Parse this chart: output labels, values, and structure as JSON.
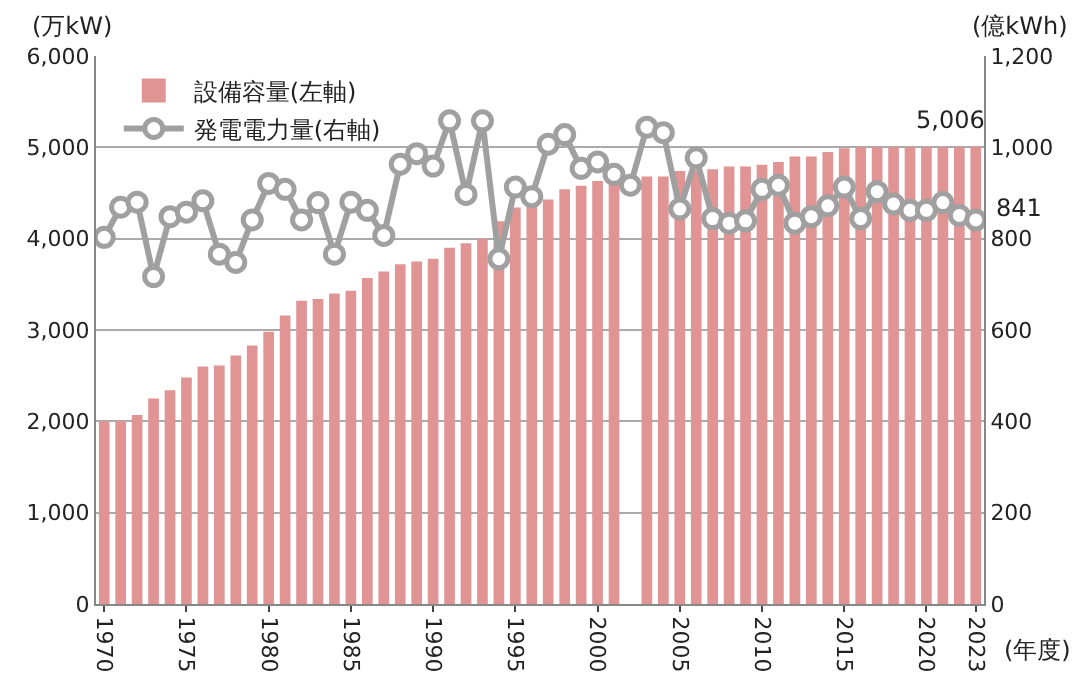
{
  "chart_data": {
    "type": "bar",
    "categories": [
      "1970",
      null,
      null,
      null,
      null,
      "1975",
      null,
      null,
      null,
      null,
      "1980",
      null,
      null,
      null,
      null,
      "1985",
      null,
      null,
      null,
      null,
      "1990",
      null,
      null,
      null,
      null,
      "1995",
      null,
      null,
      null,
      null,
      "2000",
      null,
      null,
      null,
      null,
      "2005",
      null,
      null,
      null,
      null,
      "2010",
      null,
      null,
      null,
      null,
      "2015",
      null,
      null,
      null,
      null,
      "2020",
      null,
      null,
      "2023"
    ],
    "series": [
      {
        "name": "設備容量(左軸)",
        "color": "#e09494",
        "values": [
          2000,
          2010,
          2070,
          2250,
          2340,
          2480,
          2600,
          2610,
          2720,
          2830,
          2980,
          3160,
          3320,
          3340,
          3400,
          3430,
          3570,
          3640,
          3720,
          3750,
          3780,
          3900,
          3950,
          4000,
          4190,
          4340,
          4380,
          4430,
          4540,
          4580,
          4630,
          4620,
          null,
          4680,
          4680,
          4740,
          4750,
          4760,
          4790,
          4790,
          4810,
          4840,
          4900,
          4900,
          4950,
          4990,
          5000,
          5000,
          5000,
          5000,
          5000,
          5000,
          5000,
          5006
        ],
        "value_labels": [
          null,
          null,
          null,
          null,
          null,
          null,
          null,
          null,
          null,
          null,
          null,
          null,
          null,
          null,
          null,
          null,
          null,
          null,
          null,
          null,
          null,
          null,
          null,
          null,
          null,
          null,
          null,
          null,
          null,
          null,
          null,
          null,
          null,
          null,
          null,
          null,
          null,
          null,
          null,
          null,
          null,
          null,
          null,
          null,
          null,
          null,
          null,
          null,
          null,
          null,
          null,
          null,
          null,
          "5,006"
        ]
      },
      {
        "name": "発電電力量(右軸)",
        "type": "line",
        "axis": "y2",
        "color": "#a0a0a0",
        "values": [
          803,
          869,
          880,
          717,
          848,
          858,
          883,
          766,
          748,
          841,
          921,
          908,
          841,
          879,
          766,
          880,
          862,
          807,
          963,
          986,
          959,
          1058,
          897,
          1058,
          756,
          913,
          892,
          1007,
          1028,
          954,
          968,
          941,
          917,
          1044,
          1032,
          865,
          977,
          844,
          834,
          839,
          908,
          917,
          834,
          848,
          872,
          913,
          844,
          903,
          876,
          862,
          862,
          879,
          851,
          841
        ],
        "value_labels": [
          null,
          null,
          null,
          null,
          null,
          null,
          null,
          null,
          null,
          null,
          null,
          null,
          null,
          null,
          null,
          null,
          null,
          null,
          null,
          null,
          null,
          null,
          null,
          null,
          null,
          null,
          null,
          null,
          null,
          null,
          null,
          null,
          null,
          null,
          null,
          null,
          null,
          null,
          null,
          null,
          null,
          null,
          null,
          null,
          null,
          null,
          null,
          null,
          null,
          null,
          null,
          null,
          null,
          "841"
        ]
      }
    ],
    "ylabel": "(万kW)",
    "y2label": "(億kWh)",
    "xlabel": "(年度)",
    "ylim": [
      0,
      6000
    ],
    "yticks": [
      0,
      {
        "value": 1000,
        "label": "1,000"
      },
      {
        "value": 2000,
        "label": "2,000"
      },
      {
        "value": 3000,
        "label": "3,000"
      },
      {
        "value": 4000,
        "label": "4,000"
      },
      {
        "value": 5000,
        "label": "5,000"
      },
      {
        "value": 6000,
        "label": "6,000"
      }
    ],
    "y2lim": [
      0,
      1200
    ],
    "y2ticks": [
      0,
      200,
      400,
      600,
      800,
      {
        "value": 1000,
        "label": "1,000"
      },
      {
        "value": 1200,
        "label": "1,200"
      }
    ],
    "grid": "y",
    "legend": "top left",
    "marker": "circle",
    "line_style": "solid"
  }
}
